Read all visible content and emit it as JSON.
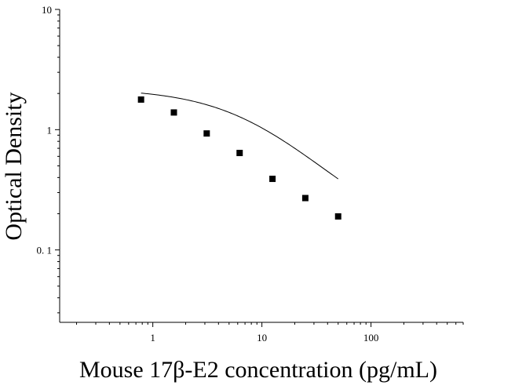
{
  "chart_data": {
    "type": "scatter",
    "xlabel": "Mouse 17β-E2 concentration (pg/mL)",
    "ylabel": "Optical Density",
    "x_scale": "log",
    "y_scale": "log",
    "xlim": [
      0.14,
      700
    ],
    "ylim": [
      0.025,
      10
    ],
    "x_ticks": [
      {
        "value": 1,
        "label": "1"
      },
      {
        "value": 10,
        "label": "10"
      },
      {
        "value": 100,
        "label": "100"
      }
    ],
    "y_ticks": [
      {
        "value": 0.1,
        "label": "0. 1"
      },
      {
        "value": 1,
        "label": "1"
      },
      {
        "value": 10,
        "label": "10"
      }
    ],
    "grid": false,
    "legend": "none",
    "marker_color": "#000000",
    "curve_color": "#000000",
    "x": [
      0.78,
      1.56,
      3.12,
      6.25,
      12.5,
      25,
      50
    ],
    "y": [
      1.78,
      1.39,
      0.93,
      0.64,
      0.39,
      0.27,
      0.19
    ],
    "fit_curve": {
      "type": "4PL",
      "top": 2.2,
      "bottom": 0.1,
      "ec50": 8.0,
      "hill": 1.0,
      "x_range": [
        0.78,
        50
      ]
    }
  }
}
